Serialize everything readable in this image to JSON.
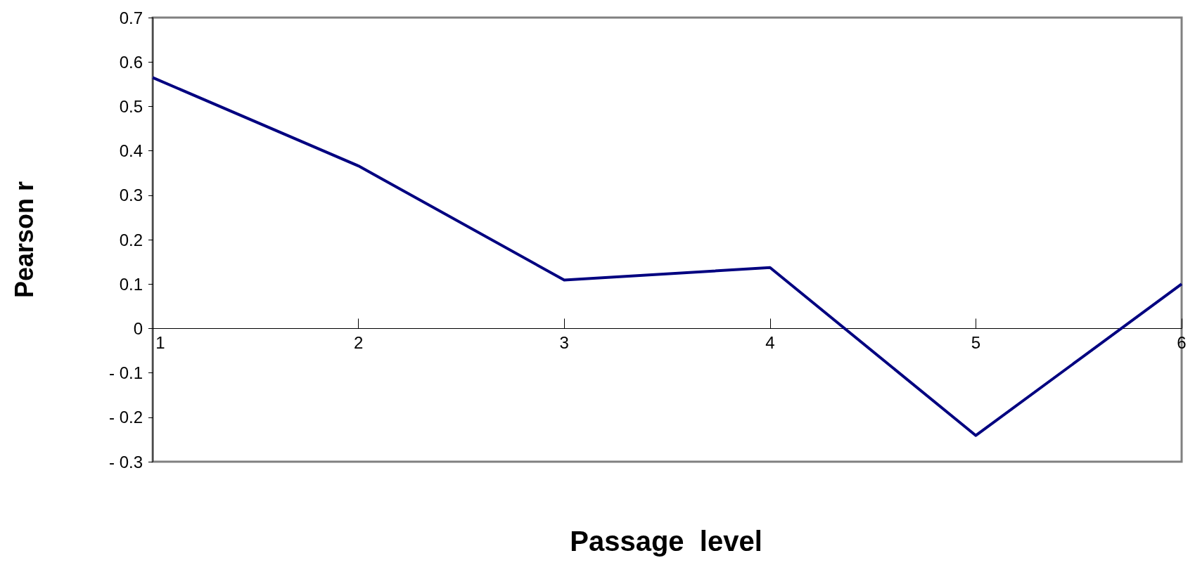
{
  "chart_data": {
    "type": "line",
    "xlabel": "Passage  level",
    "ylabel": "Pearson r",
    "x": [
      1,
      2,
      3,
      4,
      5,
      6
    ],
    "series": [
      {
        "color": "#000080",
        "values": [
          0.565,
          0.366,
          0.109,
          0.137,
          -0.241,
          0.1
        ]
      }
    ],
    "xlim": [
      1,
      6
    ],
    "xticks": [
      1,
      2,
      3,
      4,
      5,
      6
    ],
    "ylim": [
      -0.3,
      0.7
    ],
    "yticks": [
      -0.3,
      -0.2,
      -0.1,
      0,
      0.1,
      0.2,
      0.3,
      0.4,
      0.5,
      0.6,
      0.7
    ],
    "grid": false,
    "marker": "none",
    "line_style": "solid"
  }
}
